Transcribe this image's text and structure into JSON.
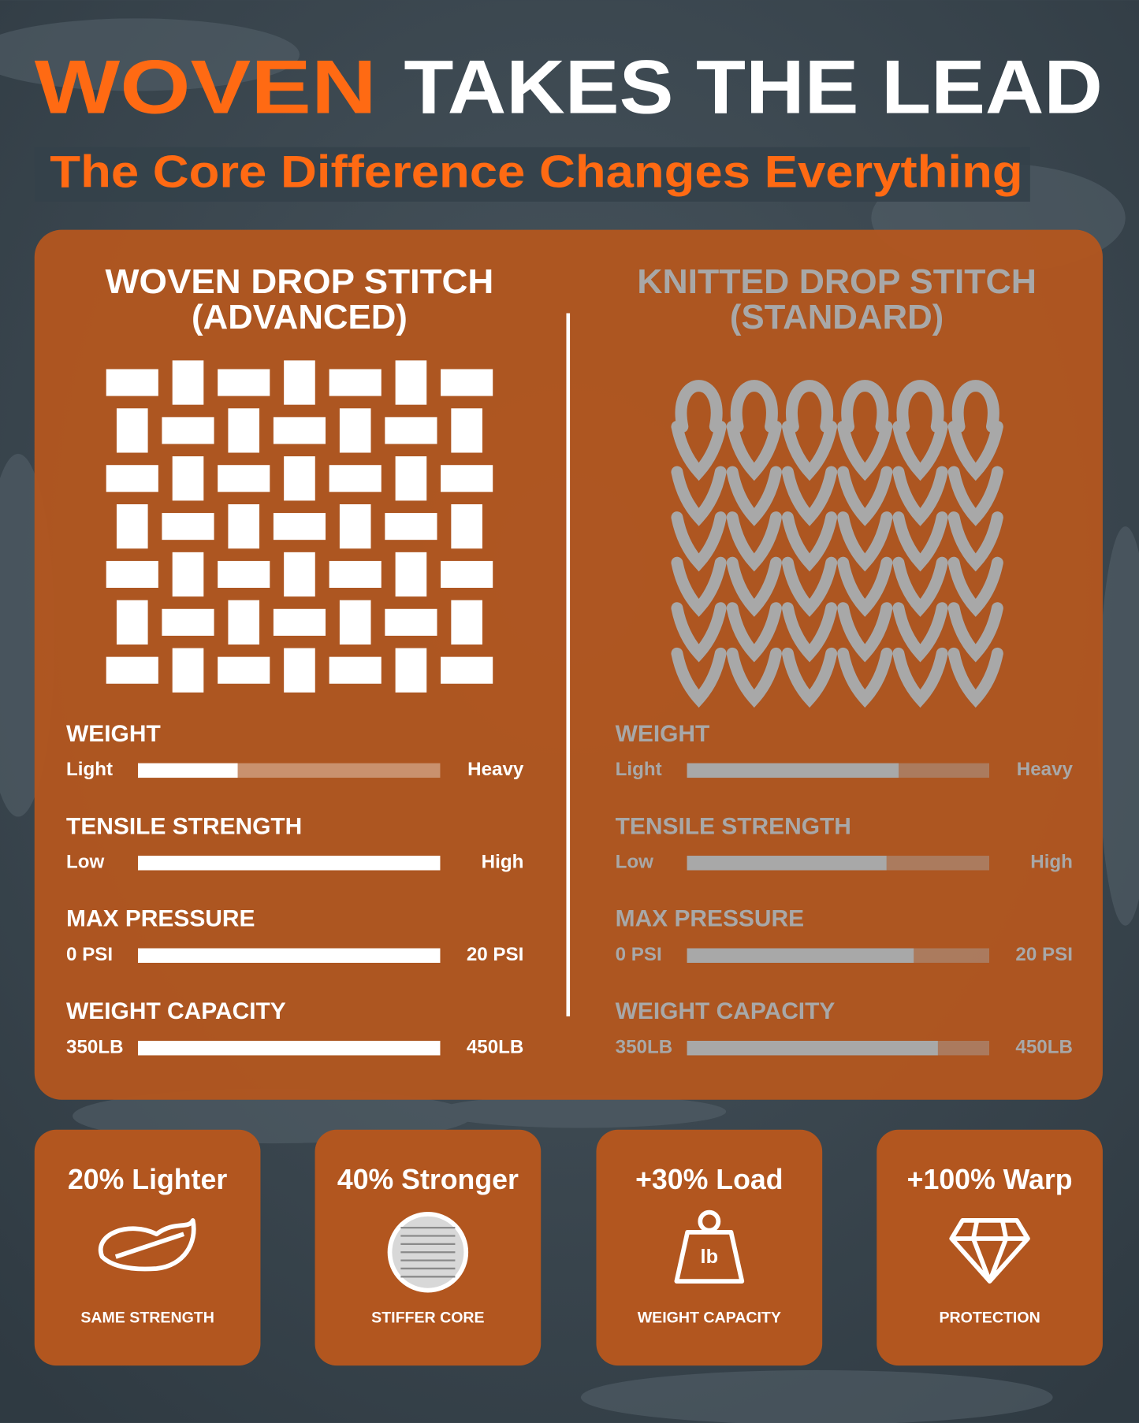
{
  "header": {
    "title_highlight": "WOVEN",
    "title_rest": "TAKES THE LEAD",
    "subtitle": "The Core Difference Changes Everything"
  },
  "comparison": [
    {
      "heading_line1": "WOVEN DROP STITCH",
      "heading_line2": "(ADVANCED)",
      "metrics": [
        {
          "name": "WEIGHT",
          "low": "Light",
          "high": "Heavy",
          "level": 33
        },
        {
          "name": "TENSILE STRENGTH",
          "low": "Low",
          "high": "High",
          "level": 100
        },
        {
          "name": "MAX PRESSURE",
          "low": "0 PSI",
          "high": "20 PSI",
          "level": 100
        },
        {
          "name": "WEIGHT CAPACITY",
          "low": "350LB",
          "high": "450LB",
          "level": 100
        }
      ]
    },
    {
      "heading_line1": "KNITTED DROP STITCH",
      "heading_line2": "(STANDARD)",
      "metrics": [
        {
          "name": "WEIGHT",
          "low": "Light",
          "high": "Heavy",
          "level": 70
        },
        {
          "name": "TENSILE STRENGTH",
          "low": "Low",
          "high": "High",
          "level": 66
        },
        {
          "name": "MAX PRESSURE",
          "low": "0 PSI",
          "high": "20 PSI",
          "level": 75
        },
        {
          "name": "WEIGHT CAPACITY",
          "low": "350LB",
          "high": "450LB",
          "level": 83
        }
      ]
    }
  ],
  "cards": [
    {
      "title": "20% Lighter",
      "caption": "SAME STRENGTH"
    },
    {
      "title": "40% Stronger",
      "caption": "STIFFER CORE"
    },
    {
      "title": "+30% Load",
      "icon_label": "lb",
      "caption": "WEIGHT CAPACITY"
    },
    {
      "title": "+100% Warp",
      "caption": "PROTECTION"
    }
  ]
}
